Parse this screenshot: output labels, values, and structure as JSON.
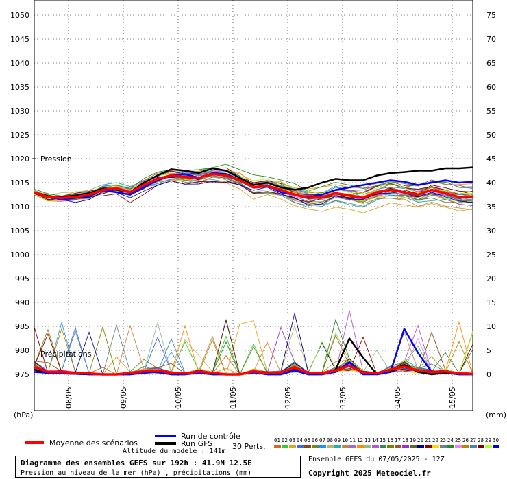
{
  "chart_data": {
    "type": "line",
    "title": "Diagramme des ensembles GEFS sur 192h : 41.9N 12.5E",
    "subtitle": "Pression au niveau de la mer (hPa) , précipitations (mm)",
    "left_unit": "(hPa)",
    "right_unit": "(mm)",
    "left_axis_label": "Pression",
    "precip_label": "Précipitations",
    "y_left_ticks": [
      1050,
      1045,
      1040,
      1035,
      1030,
      1025,
      1020,
      1015,
      1010,
      1005,
      1000,
      995,
      990,
      985,
      980,
      975
    ],
    "y_right_ticks": [
      75,
      70,
      65,
      60,
      55,
      50,
      45,
      40,
      35,
      30,
      25,
      20,
      15,
      10,
      5,
      0
    ],
    "pressure_range": [
      975,
      1050
    ],
    "precip_range": [
      0,
      75
    ],
    "x_ticks": [
      "08/05",
      "09/05",
      "10/05",
      "11/05",
      "12/05",
      "13/05",
      "14/05",
      "15/05"
    ],
    "x": [
      0,
      6,
      12,
      18,
      24,
      30,
      36,
      42,
      48,
      54,
      60,
      66,
      72,
      78,
      84,
      90,
      96,
      102,
      108,
      114,
      120,
      126,
      132,
      138,
      144,
      150,
      156,
      162,
      168,
      174,
      180,
      186,
      192
    ],
    "series": [
      {
        "name": "Moyenne des scénarios",
        "role": "pressure_mean",
        "color": "#ff0000",
        "values": [
          1013.0,
          1012.0,
          1011.8,
          1012.0,
          1012.5,
          1013.5,
          1013.8,
          1013.0,
          1014.5,
          1015.8,
          1016.5,
          1016.2,
          1016.0,
          1016.8,
          1016.5,
          1015.5,
          1014.0,
          1014.3,
          1013.5,
          1012.5,
          1011.8,
          1012.0,
          1012.8,
          1012.3,
          1011.8,
          1013.0,
          1013.5,
          1013.0,
          1012.5,
          1013.5,
          1012.8,
          1012.0,
          1012.0
        ]
      },
      {
        "name": "Run de contrôle",
        "role": "pressure_control",
        "color": "#0000ff",
        "values": [
          1013.0,
          1012.0,
          1011.5,
          1011.8,
          1012.2,
          1013.5,
          1013.0,
          1012.5,
          1014.0,
          1015.5,
          1016.5,
          1016.8,
          1016.0,
          1017.0,
          1016.8,
          1015.5,
          1014.0,
          1014.5,
          1013.0,
          1012.5,
          1012.0,
          1012.5,
          1013.5,
          1014.0,
          1014.5,
          1015.0,
          1015.5,
          1015.2,
          1014.5,
          1015.0,
          1015.5,
          1015.0,
          1015.2
        ]
      },
      {
        "name": "Run GFS",
        "role": "pressure_gfs",
        "color": "#000000",
        "values": [
          1013.0,
          1012.2,
          1012.0,
          1012.3,
          1012.8,
          1013.8,
          1013.5,
          1013.0,
          1015.0,
          1016.5,
          1017.8,
          1017.5,
          1017.0,
          1018.0,
          1017.5,
          1016.0,
          1014.5,
          1015.0,
          1014.0,
          1013.5,
          1014.0,
          1015.0,
          1015.8,
          1015.5,
          1015.5,
          1016.5,
          1017.0,
          1017.2,
          1017.5,
          1017.5,
          1018.0,
          1018.0,
          1018.2
        ]
      },
      {
        "name": "Moyenne des scénarios",
        "role": "precip_mean",
        "color": "#ff0000",
        "values": [
          1.5,
          0.5,
          0.5,
          0.3,
          0.2,
          0,
          0,
          0.3,
          0.6,
          0.8,
          0.3,
          0.2,
          0.6,
          0.3,
          0,
          0,
          0.6,
          0.3,
          0.4,
          1.4,
          0.3,
          0.2,
          0.8,
          1.8,
          0.4,
          0.2,
          1.0,
          1.6,
          0.8,
          0.5,
          0.6,
          0.2,
          0.1
        ]
      },
      {
        "name": "Run de contrôle",
        "role": "precip_control",
        "color": "#0000ff",
        "values": [
          0.5,
          0.3,
          0.2,
          0.1,
          0,
          0,
          0,
          0,
          0.3,
          0.5,
          0,
          0,
          0.3,
          0,
          0,
          0,
          0.4,
          0,
          0,
          0.8,
          0,
          0,
          0.5,
          2.5,
          0,
          0,
          0.5,
          9.5,
          4.5,
          0.5,
          0.5,
          0,
          0
        ]
      },
      {
        "name": "Run GFS",
        "role": "precip_gfs",
        "color": "#000000",
        "values": [
          1.0,
          0.2,
          0.2,
          0.1,
          0,
          0,
          0,
          0,
          0.4,
          0.5,
          0,
          0,
          0.5,
          0,
          0,
          0,
          0.5,
          0,
          0,
          1.0,
          0,
          0,
          1.0,
          7.5,
          3.5,
          0,
          0.5,
          2.0,
          0.5,
          0,
          0.3,
          0,
          0
        ]
      }
    ],
    "legend": {
      "mean_label": "Moyenne des scénarios",
      "control_label": "Run de contrôle",
      "gfs_label": "Run GFS",
      "perts_label": "30 Perts.",
      "pert_numbers": [
        "01",
        "02",
        "03",
        "04",
        "05",
        "06",
        "07",
        "08",
        "09",
        "10",
        "11",
        "12",
        "13",
        "14",
        "15",
        "16",
        "17",
        "18",
        "19",
        "20",
        "21",
        "22",
        "23",
        "24",
        "25",
        "26",
        "27",
        "28",
        "29",
        "30"
      ],
      "pert_colors": [
        "#d2691e",
        "#32cd32",
        "#daa520",
        "#4169e1",
        "#8b4513",
        "#6b8e23",
        "#1e90ff",
        "#bdb76b",
        "#20b2aa",
        "#cd853f",
        "#9370db",
        "#ff8c00",
        "#8fbc8f",
        "#ba55d3",
        "#2e8b57",
        "#808000",
        "#a0522d",
        "#9932cc",
        "#556b2f",
        "#00008b",
        "#8b0000",
        "#ffd700",
        "#708090",
        "#228b22",
        "#ee82ee",
        "#b8860b",
        "#4682b4",
        "#800000",
        "#adff2f",
        "#0000cd"
      ]
    },
    "grid": true
  },
  "footer": {
    "altitude": "Altitude du modele : 141m",
    "run_info": "Ensemble GEFS du 07/05/2025 - 12Z",
    "copyright": "Copyright 2025 Meteociel.fr"
  }
}
